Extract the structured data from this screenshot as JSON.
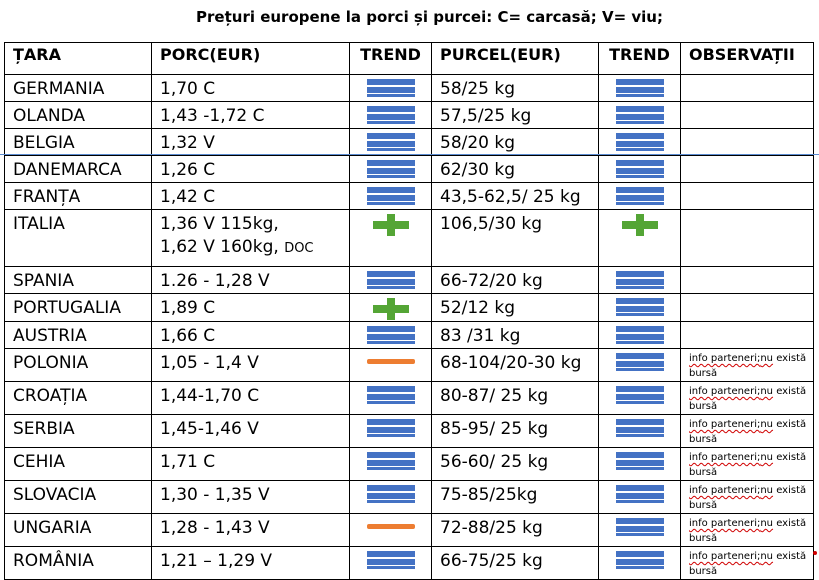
{
  "title": "Prețuri europene la porci și purcei: C= carcasă; V= viu;",
  "headers": [
    "ȚARA",
    "PORC(EUR)",
    "TREND",
    "PURCEL(EUR)",
    "TREND",
    "OBSERVAȚII"
  ],
  "colors": {
    "stable": "#4472c4",
    "up": "#54a535",
    "down": "#ed7d31"
  },
  "rows": [
    {
      "country": "GERMANIA",
      "porc": "1,70 C",
      "porc_extra": "",
      "porc_extra_small": "",
      "trend1": "stable",
      "purcel": "58/25 kg",
      "trend2": "stable",
      "obs_a": "",
      "obs_b": "",
      "obs_c": ""
    },
    {
      "country": "OLANDA",
      "porc": "1,43 -1,72 C",
      "porc_extra": "",
      "porc_extra_small": "",
      "trend1": "stable",
      "purcel": "57,5/25 kg",
      "trend2": "stable",
      "obs_a": "",
      "obs_b": "",
      "obs_c": ""
    },
    {
      "country": "BELGIA",
      "porc": "1,32 V",
      "porc_extra": "",
      "porc_extra_small": "",
      "trend1": "stable",
      "purcel": "58/20 kg",
      "trend2": "stable",
      "obs_a": "",
      "obs_b": "",
      "obs_c": ""
    },
    {
      "country": "DANEMARCA",
      "porc": "1,26 C",
      "porc_extra": "",
      "porc_extra_small": "",
      "trend1": "stable",
      "purcel": "62/30 kg",
      "trend2": "stable",
      "obs_a": "",
      "obs_b": "",
      "obs_c": ""
    },
    {
      "country": "FRANȚA",
      "porc": "1,42 C",
      "porc_extra": "",
      "porc_extra_small": "",
      "trend1": "stable",
      "purcel": "43,5-62,5/ 25 kg",
      "trend2": "stable",
      "obs_a": "",
      "obs_b": "",
      "obs_c": ""
    },
    {
      "country": "ITALIA",
      "porc": "1,36 V 115kg,",
      "porc_extra": "1,62 V 160kg, ",
      "porc_extra_small": "DOC",
      "trend1": "up",
      "purcel": "106,5/30 kg",
      "trend2": "up",
      "obs_a": "",
      "obs_b": "",
      "obs_c": ""
    },
    {
      "country": "SPANIA",
      "porc": "1.26 - 1,28 V",
      "porc_extra": "",
      "porc_extra_small": "",
      "trend1": "stable",
      "purcel": "66-72/20 kg",
      "trend2": "stable",
      "obs_a": "",
      "obs_b": "",
      "obs_c": ""
    },
    {
      "country": "PORTUGALIA",
      "porc": "1,89 C",
      "porc_extra": "",
      "porc_extra_small": "",
      "trend1": "up",
      "purcel": "52/12 kg",
      "trend2": "stable",
      "obs_a": "",
      "obs_b": "",
      "obs_c": ""
    },
    {
      "country": "AUSTRIA",
      "porc": "1,66 C",
      "porc_extra": "",
      "porc_extra_small": "",
      "trend1": "stable",
      "purcel": "83 /31 kg",
      "trend2": "stable",
      "obs_a": "",
      "obs_b": "",
      "obs_c": ""
    },
    {
      "country": "POLONIA",
      "porc": "1,05 - 1,4 V",
      "porc_extra": "",
      "porc_extra_small": "",
      "trend1": "down",
      "purcel": "68-104/20-30 kg",
      "trend2": "stable",
      "obs_a": "info parteneri;",
      "obs_b": "nu",
      "obs_c": " există bursă"
    },
    {
      "country": "CROAȚIA",
      "porc": "1,44-1,70 C",
      "porc_extra": "",
      "porc_extra_small": "",
      "trend1": "stable",
      "purcel": "80-87/ 25 kg",
      "trend2": "stable",
      "obs_a": "info parteneri;",
      "obs_b": "nu",
      "obs_c": " există bursă"
    },
    {
      "country": "SERBIA",
      "porc": "1,45-1,46 V",
      "porc_extra": "",
      "porc_extra_small": "",
      "trend1": "stable",
      "purcel": "85-95/ 25 kg",
      "trend2": "stable",
      "obs_a": "info parteneri;",
      "obs_b": "nu",
      "obs_c": " există bursă"
    },
    {
      "country": "CEHIA",
      "porc": "1,71 C",
      "porc_extra": "",
      "porc_extra_small": "",
      "trend1": "stable",
      "purcel": "56-60/ 25 kg",
      "trend2": "stable",
      "obs_a": "info parteneri;",
      "obs_b": "nu",
      "obs_c": " există bursă"
    },
    {
      "country": "SLOVACIA",
      "porc": "1,30 - 1,35 V",
      "porc_extra": "",
      "porc_extra_small": "",
      "trend1": "stable",
      "purcel": "75-85/25kg",
      "trend2": "stable",
      "obs_a": "info parteneri;",
      "obs_b": "nu",
      "obs_c": " există bursă"
    },
    {
      "country": "UNGARIA",
      "porc": "1,28 - 1,43 V",
      "porc_extra": "",
      "porc_extra_small": "",
      "trend1": "down",
      "purcel": "72-88/25 kg",
      "trend2": "stable",
      "obs_a": "info parteneri;",
      "obs_b": "nu",
      "obs_c": " există bursă"
    },
    {
      "country": "ROMÂNIA",
      "porc": "1,21 – 1,29 V",
      "porc_extra": "",
      "porc_extra_small": "",
      "trend1": "stable",
      "purcel": "66-75/25 kg",
      "trend2": "stable",
      "obs_a": "info parteneri;",
      "obs_b": "nu",
      "obs_c": " există bursă"
    }
  ]
}
